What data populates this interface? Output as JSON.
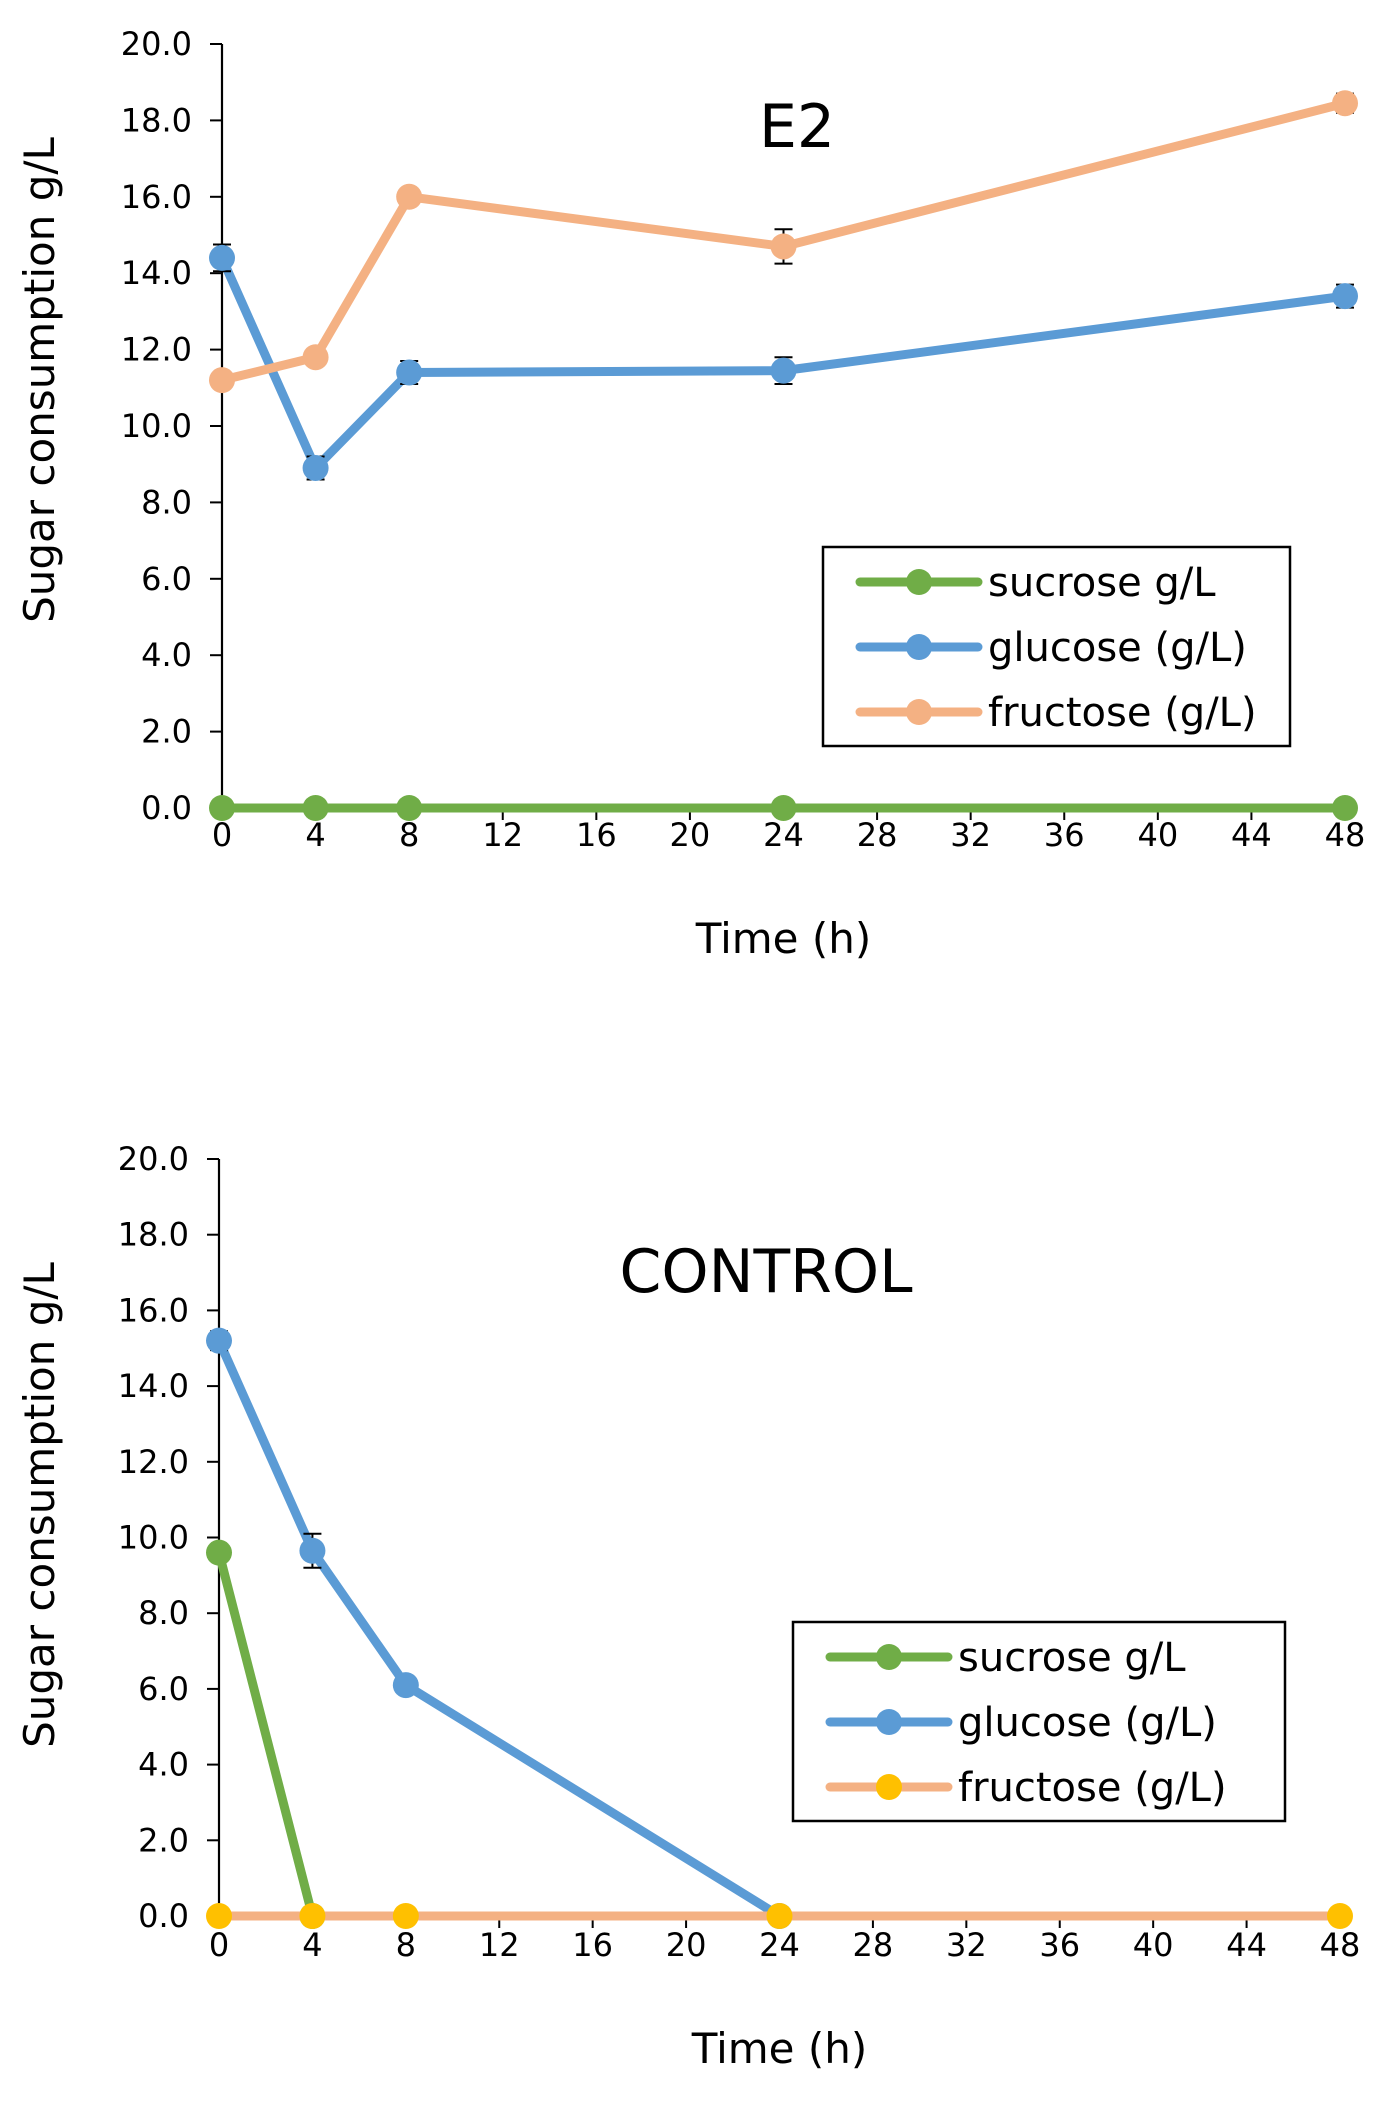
{
  "chart_data": [
    {
      "type": "line",
      "title": "E2",
      "xlabel": "Time (h)",
      "ylabel": "Sugar consumption g/L",
      "xlim": [
        0,
        48
      ],
      "ylim": [
        0,
        20
      ],
      "x_ticks": [
        "0",
        "4",
        "8",
        "12",
        "16",
        "20",
        "24",
        "28",
        "32",
        "36",
        "40",
        "44",
        "48"
      ],
      "y_ticks": [
        "0.0",
        "2.0",
        "4.0",
        "6.0",
        "8.0",
        "10.0",
        "12.0",
        "14.0",
        "16.0",
        "18.0",
        "20.0"
      ],
      "grid": false,
      "legend_position": "right",
      "x": [
        0,
        4,
        8,
        24,
        48
      ],
      "series": [
        {
          "name": "sucrose g/L",
          "color": "#70ad47",
          "marker": "#70ad47",
          "values": [
            0,
            0,
            0,
            0,
            0
          ],
          "errors": [
            0,
            0,
            0,
            0,
            0
          ]
        },
        {
          "name": "glucose (g/L)",
          "color": "#5b9bd5",
          "marker": "#5b9bd5",
          "values": [
            14.4,
            8.9,
            11.4,
            11.45,
            13.4
          ],
          "errors": [
            0.35,
            0.3,
            0.3,
            0.35,
            0.3
          ]
        },
        {
          "name": "fructose (g/L)",
          "color": "#f4b183",
          "marker": "#f4b183",
          "values": [
            11.2,
            11.8,
            16.0,
            14.7,
            18.45
          ],
          "errors": [
            0.2,
            0.2,
            0.15,
            0.45,
            0.25
          ]
        }
      ]
    },
    {
      "type": "line",
      "title": "CONTROL",
      "xlabel": "Time (h)",
      "ylabel": "Sugar consumption g/L",
      "xlim": [
        0,
        48
      ],
      "ylim": [
        0,
        20
      ],
      "x_ticks": [
        "0",
        "4",
        "8",
        "12",
        "16",
        "20",
        "24",
        "28",
        "32",
        "36",
        "40",
        "44",
        "48"
      ],
      "y_ticks": [
        "0.0",
        "2.0",
        "4.0",
        "6.0",
        "8.0",
        "10.0",
        "12.0",
        "14.0",
        "16.0",
        "18.0",
        "20.0"
      ],
      "grid": false,
      "legend_position": "right",
      "x": [
        0,
        4,
        8,
        24,
        48
      ],
      "series": [
        {
          "name": "sucrose g/L",
          "color": "#70ad47",
          "marker": "#70ad47",
          "x": [
            0,
            4
          ],
          "values": [
            9.6,
            0
          ],
          "errors": [
            0.2,
            0
          ]
        },
        {
          "name": "glucose (g/L)",
          "color": "#5b9bd5",
          "marker": "#5b9bd5",
          "x": [
            0,
            4,
            8,
            24
          ],
          "values": [
            15.2,
            9.65,
            6.1,
            0
          ],
          "errors": [
            0.25,
            0.45,
            0.15,
            0
          ]
        },
        {
          "name": "fructose (g/L)",
          "color": "#f4b183",
          "marker": "#ffc000",
          "values": [
            0,
            0,
            0,
            0,
            0
          ],
          "errors": [
            0,
            0,
            0,
            0,
            0
          ]
        }
      ]
    }
  ]
}
